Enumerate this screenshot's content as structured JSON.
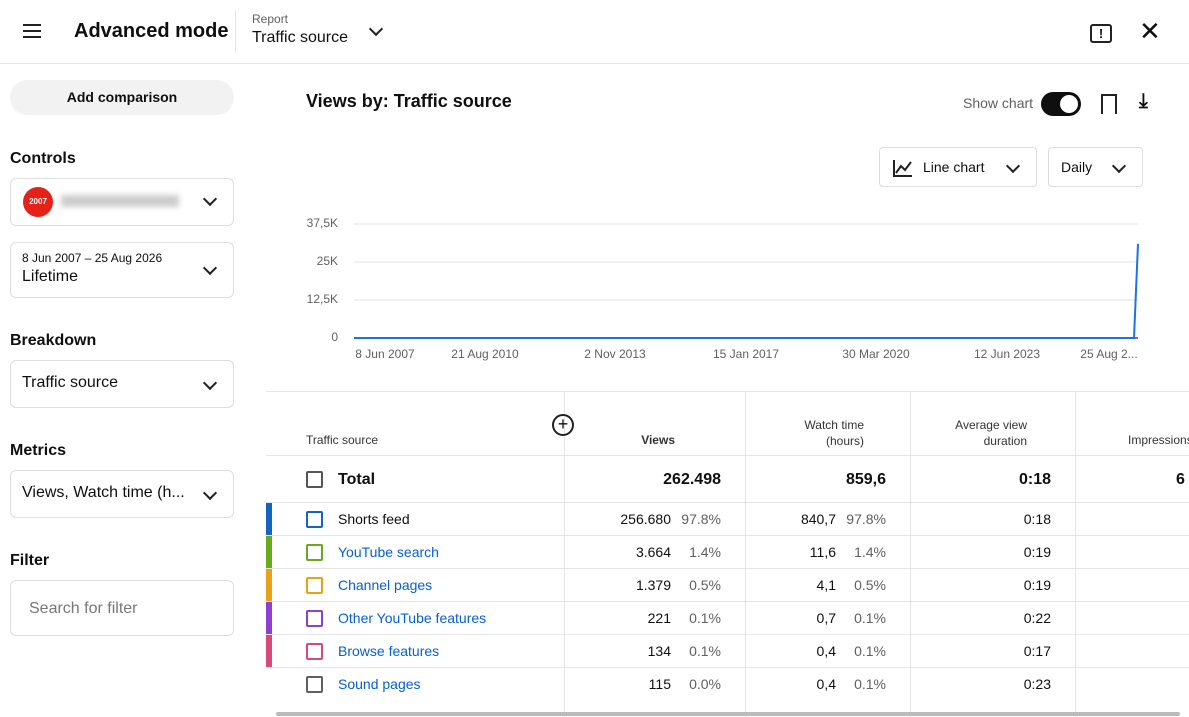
{
  "header": {
    "title": "Advanced mode",
    "report_label": "Report",
    "report_value": "Traffic source"
  },
  "sidebar": {
    "add_comparison": "Add comparison",
    "controls_label": "Controls",
    "channel_logo": "2007",
    "date_range": "8 Jun 2007 – 25 Aug 2026",
    "period": "Lifetime",
    "breakdown_label": "Breakdown",
    "breakdown_value": "Traffic source",
    "metrics_label": "Metrics",
    "metrics_value": "Views, Watch time (h...",
    "filter_label": "Filter",
    "filter_placeholder": "Search for filter"
  },
  "chart": {
    "title": "Views by: Traffic source",
    "show_chart": "Show chart",
    "chart_type": "Line chart",
    "interval": "Daily",
    "ylim": [
      0,
      37500
    ],
    "yticks": [
      0,
      {
        "value": 12500,
        "label": "12,5K"
      },
      {
        "value": 25000,
        "label": "25K"
      },
      {
        "value": 37500,
        "label": "37,5K"
      }
    ],
    "xticks": [
      "8 Jun 2007",
      "21 Aug 2010",
      "2 Nov 2013",
      "15 Jan 2017",
      "30 Mar 2020",
      "12 Jun 2023",
      "25 Aug 2..."
    ],
    "series": [
      {
        "color": "#d6497a",
        "values": [
          0,
          0
        ]
      },
      {
        "color": "#1a73e8",
        "values": [
          0,
          0,
          31000
        ]
      }
    ]
  },
  "table": {
    "columns": [
      "Traffic source",
      "Views",
      "Watch time (hours)",
      "Average view duration",
      "Impressions"
    ],
    "total": {
      "label": "Total",
      "views": "262.498",
      "watch_time": "859,6",
      "avg_duration": "0:18",
      "impressions": "6"
    },
    "rows": [
      {
        "name": "Shorts feed",
        "color": "#1565c0",
        "views": "256.680",
        "views_pct": "97.8%",
        "watch_time": "840,7",
        "watch_pct": "97.8%",
        "avg_duration": "0:18"
      },
      {
        "name": "YouTube search",
        "color": "#6aa81e",
        "views": "3.664",
        "views_pct": "1.4%",
        "watch_time": "11,6",
        "watch_pct": "1.4%",
        "avg_duration": "0:19"
      },
      {
        "name": "Channel pages",
        "color": "#e8a21a",
        "views": "1.379",
        "views_pct": "0.5%",
        "watch_time": "4,1",
        "watch_pct": "0.5%",
        "avg_duration": "0:19"
      },
      {
        "name": "Other YouTube features",
        "color": "#8e3fd0",
        "views": "221",
        "views_pct": "0.1%",
        "watch_time": "0,7",
        "watch_pct": "0.1%",
        "avg_duration": "0:22"
      },
      {
        "name": "Browse features",
        "color": "#d6497a",
        "views": "134",
        "views_pct": "0.1%",
        "watch_time": "0,4",
        "watch_pct": "0.1%",
        "avg_duration": "0:17"
      },
      {
        "name": "Sound pages",
        "color": "#606060",
        "views": "115",
        "views_pct": "0.0%",
        "watch_time": "0,4",
        "watch_pct": "0.1%",
        "avg_duration": "0:23"
      }
    ]
  }
}
